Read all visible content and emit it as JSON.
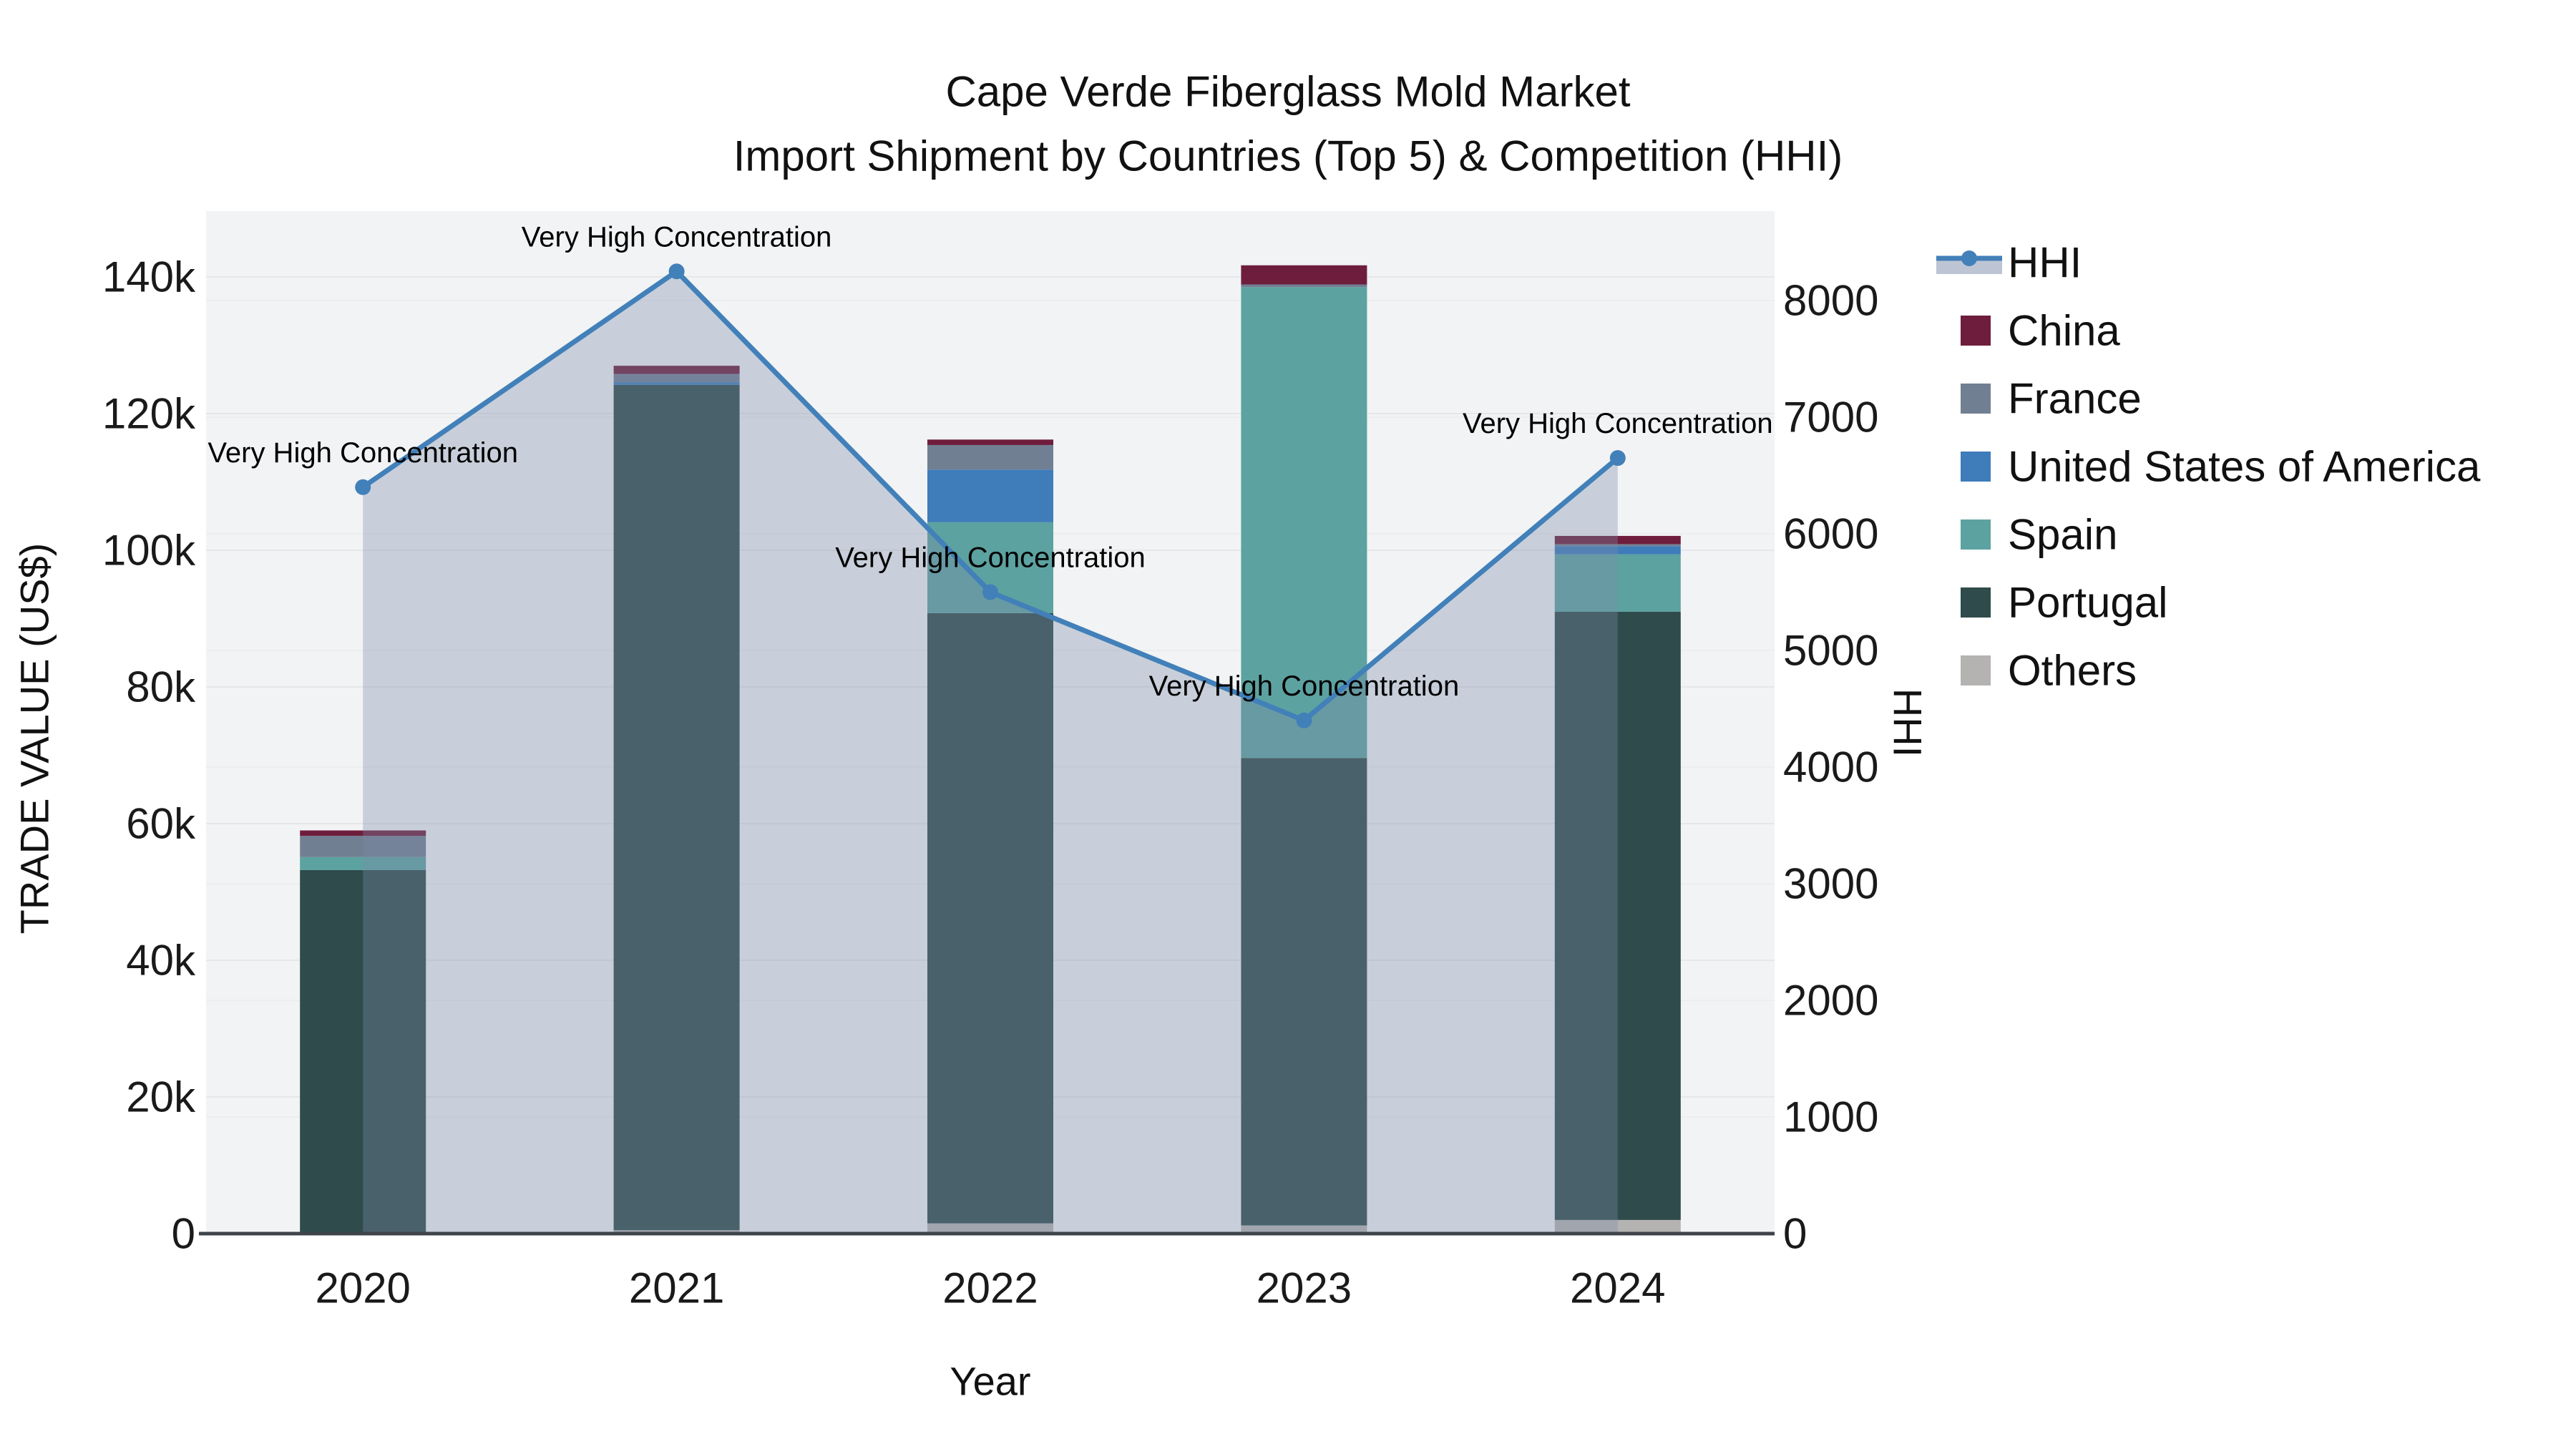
{
  "title": {
    "line1": "Cape Verde Fiberglass Mold Market",
    "line2": "Import Shipment by Countries (Top 5) & Competition (HHI)"
  },
  "axes": {
    "left_title": "TRADE VALUE (US$)",
    "right_title": "HHI",
    "x_title": "Year"
  },
  "legend": {
    "items": [
      {
        "label": "HHI",
        "type": "line",
        "color": "#4280B9",
        "fill": "rgba(124,140,169,0.50)"
      },
      {
        "label": "China",
        "type": "square",
        "color": "#6F1D3D"
      },
      {
        "label": "France",
        "type": "square",
        "color": "#717F92"
      },
      {
        "label": "United States of America",
        "type": "square",
        "color": "#3E7CBA"
      },
      {
        "label": "Spain",
        "type": "square",
        "color": "#5CA2A0"
      },
      {
        "label": "Portugal",
        "type": "square",
        "color": "#2F4B4B"
      },
      {
        "label": "Others",
        "type": "square",
        "color": "#B4B3B1"
      }
    ]
  },
  "colors": {
    "plot_bg": "#F2F3F4",
    "grid_left": "#E5E7E9",
    "grid_right": "#EBEDEF",
    "axis_line": "#3F444A",
    "hhi_line": "#4280B9",
    "hhi_fill": "rgba(124,140,169,0.35)"
  },
  "chart_data": {
    "type": "bar+line",
    "categories": [
      "2020",
      "2021",
      "2022",
      "2023",
      "2024"
    ],
    "bar_unit": "US$",
    "stack_order_bottom_to_top": [
      "Others",
      "Portugal",
      "Spain",
      "United States of America",
      "France",
      "China"
    ],
    "series": [
      {
        "name": "Others",
        "color": "#B4B3B1",
        "values": [
          0,
          500,
          1500,
          1200,
          2000
        ]
      },
      {
        "name": "Portugal",
        "color": "#2F4B4B",
        "values": [
          53200,
          123700,
          89300,
          68400,
          89000
        ]
      },
      {
        "name": "Spain",
        "color": "#5CA2A0",
        "values": [
          1900,
          0,
          13300,
          68900,
          8400
        ]
      },
      {
        "name": "United States of America",
        "color": "#3E7CBA",
        "values": [
          0,
          400,
          7700,
          0,
          1200
        ]
      },
      {
        "name": "France",
        "color": "#717F92",
        "values": [
          3100,
          1200,
          3600,
          400,
          300
        ]
      },
      {
        "name": "China",
        "color": "#6F1D3D",
        "values": [
          800,
          1200,
          800,
          2800,
          1200
        ]
      }
    ],
    "bar_totals": [
      59000,
      127000,
      116200,
      141700,
      102100
    ],
    "line_series": {
      "name": "HHI",
      "axis": "right",
      "color": "#4280B9",
      "fill": "rgba(124,140,169,0.35)",
      "values": [
        6400,
        8250,
        5500,
        4400,
        6650
      ]
    },
    "annotations": [
      "Very High Concentration",
      "Very High Concentration",
      "Very High Concentration",
      "Very High Concentration",
      "Very High Concentration"
    ],
    "left_axis": {
      "title": "TRADE VALUE (US$)",
      "min": 0,
      "max": 140000,
      "tick_step": 20000,
      "tick_labels": [
        "0",
        "20k",
        "40k",
        "60k",
        "80k",
        "100k",
        "120k",
        "140k"
      ]
    },
    "right_axis": {
      "title": "HHI",
      "min": 0,
      "max": 8000,
      "tick_step": 1000,
      "tick_labels": [
        "0",
        "1000",
        "2000",
        "3000",
        "4000",
        "5000",
        "6000",
        "7000",
        "8000"
      ]
    },
    "x_axis": {
      "title": "Year"
    },
    "legend_position": "right",
    "grid": true
  }
}
